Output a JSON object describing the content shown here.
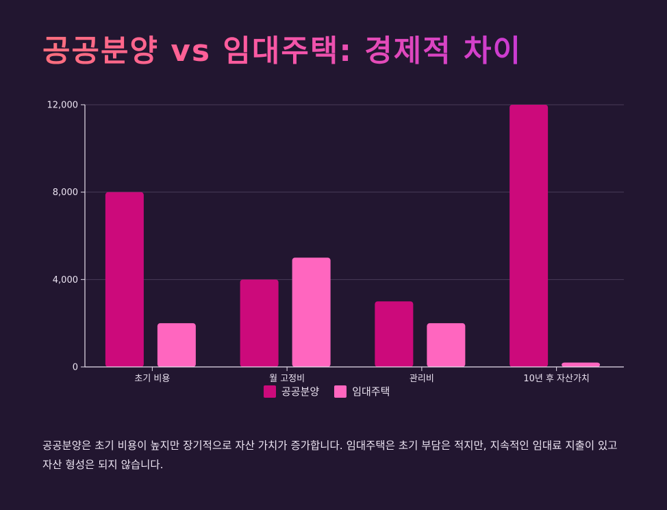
{
  "title": "공공분양 vs 임대주택: 경제적 차이",
  "description": "공공분양은 초기 비용이 높지만 장기적으로 자산 가치가 증가합니다. 임대주택은 초기 부담은 적지만, 지속적인 임대료 지출이 있고 자산 형성은 되지 않습니다.",
  "chart_data": {
    "type": "bar",
    "categories": [
      "초기 비용",
      "월 고정비",
      "관리비",
      "10년 후 자산가치"
    ],
    "series": [
      {
        "name": "공공분양",
        "values": [
          8000,
          4000,
          3000,
          12000
        ],
        "color": "#cc0a7b"
      },
      {
        "name": "임대주택",
        "values": [
          2000,
          5000,
          2000,
          200
        ],
        "color": "#ff66bf"
      }
    ],
    "ylim": [
      0,
      12000
    ],
    "yticks": [
      "0",
      "4,000",
      "8,000",
      "12,000"
    ],
    "ytick_values": [
      0,
      4000,
      8000,
      12000
    ],
    "grid": true,
    "legend": "bottom-center",
    "xlabel": "",
    "ylabel": ""
  }
}
